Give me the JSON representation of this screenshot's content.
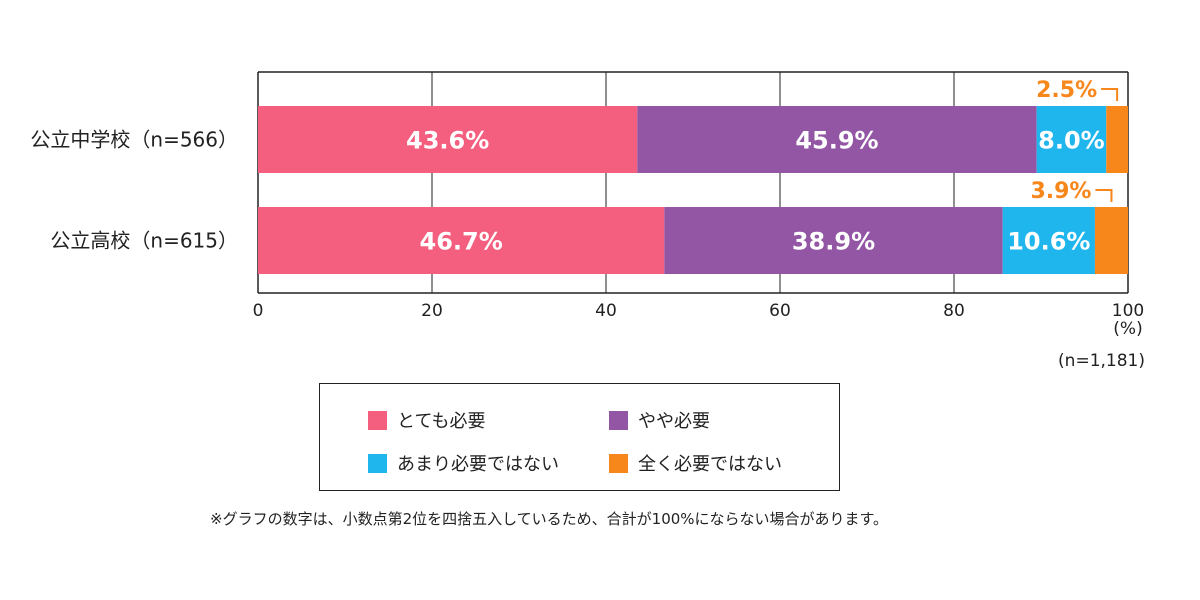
{
  "chart_data": {
    "type": "bar",
    "orientation": "horizontal",
    "stacked": true,
    "categories": [
      "公立中学校（n=566）",
      "公立高校（n=615）"
    ],
    "series": [
      {
        "name": "とても必要",
        "values": [
          43.6,
          46.7
        ],
        "labels": [
          "43.6%",
          "46.7%"
        ],
        "color": "#f45f7f"
      },
      {
        "name": "やや必要",
        "values": [
          45.9,
          38.9
        ],
        "labels": [
          "45.9%",
          "38.9%"
        ],
        "color": "#9356a5"
      },
      {
        "name": "あまり必要ではない",
        "values": [
          8.0,
          10.6
        ],
        "labels": [
          "8.0%",
          "10.6%"
        ],
        "color": "#1fb6ee"
      },
      {
        "name": "全く必要ではない",
        "values": [
          2.5,
          3.9
        ],
        "labels": [
          "2.5%",
          "3.9%"
        ],
        "color": "#f7861b"
      }
    ],
    "xlim": [
      0,
      100
    ],
    "xticks": [
      0,
      20,
      40,
      60,
      80,
      100
    ],
    "unit_label": "(%)",
    "n_label": "(n=1,181)",
    "grid": true,
    "legend_position": "bottom",
    "small_label_color": "#f7861b"
  },
  "footnote": "※グラフの数字は、小数点第2位を四捨五入しているため、合計が100%にならない場合があります。"
}
